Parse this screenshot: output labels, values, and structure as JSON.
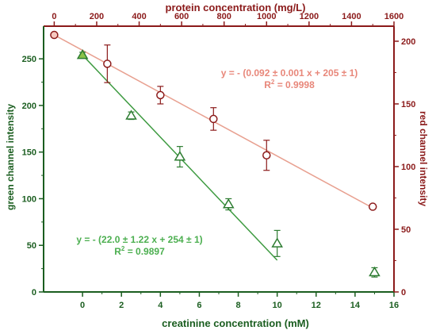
{
  "chart_data": {
    "type": "scatter",
    "xlabel_bottom": "creatinine concentration (mM)",
    "xlabel_top": "protein concentration (mg/L)",
    "ylabel_left": "green channel intensity",
    "ylabel_right": "red channel intensity",
    "xlim_bottom": [
      -2,
      16
    ],
    "xlim_top": [
      -50,
      1600
    ],
    "ylim_left": [
      0,
      285
    ],
    "ylim_right": [
      0,
      212
    ],
    "xticks_bottom": [
      "0",
      "2",
      "4",
      "6",
      "8",
      "10",
      "12",
      "14",
      "16"
    ],
    "xticks_top": [
      "0",
      "200",
      "400",
      "600",
      "800",
      "1000",
      "1200",
      "1400",
      "1600"
    ],
    "yticks_left": [
      "0",
      "50",
      "100",
      "150",
      "200",
      "250"
    ],
    "yticks_right": [
      "0",
      "50",
      "100",
      "150",
      "200"
    ],
    "series": [
      {
        "axis": "left-bottom",
        "marker": "triangle",
        "color": "#2e7d32",
        "x": [
          0,
          2.5,
          5,
          7.5,
          10,
          15
        ],
        "y": [
          254,
          189,
          145,
          94,
          52,
          21
        ],
        "err": [
          3,
          4,
          11,
          6,
          14,
          5
        ],
        "fit": {
          "x": [
            0,
            10
          ],
          "y": [
            254,
            34
          ]
        },
        "equation": "y = - (22.0 ± 1.22 x + 254 ± 1)",
        "r2_prefix": "R",
        "r2_exp": "2",
        "r2_value": " = 0.9897"
      },
      {
        "axis": "right-top",
        "marker": "circle",
        "color": "#8b1a1a",
        "x": [
          0,
          250,
          500,
          750,
          1000,
          1500
        ],
        "y": [
          205,
          182,
          157,
          138,
          109,
          68
        ],
        "err": [
          0,
          15,
          7,
          9,
          12,
          1
        ],
        "fit": {
          "x": [
            0,
            1500
          ],
          "y": [
            205,
            67
          ]
        },
        "equation": "y = - (0.092 ± 0.001 x + 205 ± 1)",
        "r2_prefix": "R",
        "r2_exp": "2",
        "r2_value": " = 0.9998"
      }
    ],
    "colors": {
      "green_axis": "#1b5e20",
      "red_axis": "#8b1a1a",
      "green_fit": "#3d9a40",
      "red_fit": "#e8a090",
      "green_eq": "#4caf50",
      "red_eq": "#e8877a"
    }
  }
}
